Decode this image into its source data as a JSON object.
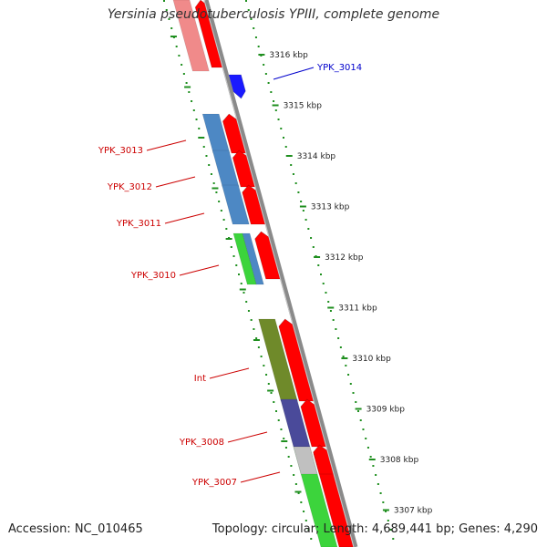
{
  "title": "Yersinia pseudotuberculosis YPIII, complete genome",
  "footer": {
    "accession": "Accession: NC_010465",
    "summary": "Topology: circular; Length: 4,689,441 bp; Genes: 4,290"
  },
  "colors": {
    "backbone": "#8a8a8a",
    "ticks": "#1f8f1f",
    "forward_label": "#0000cc",
    "reverse_label": "#cc0000",
    "cds_arrow": "#ff0000"
  },
  "ticks": [
    {
      "label": "3316 kbp"
    },
    {
      "label": "3315 kbp"
    },
    {
      "label": "3314 kbp"
    },
    {
      "label": "3313 kbp"
    },
    {
      "label": "3312 kbp"
    },
    {
      "label": "3311 kbp"
    },
    {
      "label": "3310 kbp"
    },
    {
      "label": "3309 kbp"
    },
    {
      "label": "3308 kbp"
    },
    {
      "label": "3307 kbp"
    }
  ],
  "genes": [
    {
      "label": "YPK_3014",
      "strand": "forward"
    },
    {
      "label": "YPK_3013",
      "strand": "reverse"
    },
    {
      "label": "YPK_3012",
      "strand": "reverse"
    },
    {
      "label": "YPK_3011",
      "strand": "reverse"
    },
    {
      "label": "YPK_3010",
      "strand": "reverse"
    },
    {
      "label": "Int",
      "strand": "reverse"
    },
    {
      "label": "YPK_3008",
      "strand": "reverse"
    },
    {
      "label": "YPK_3007",
      "strand": "reverse"
    }
  ]
}
